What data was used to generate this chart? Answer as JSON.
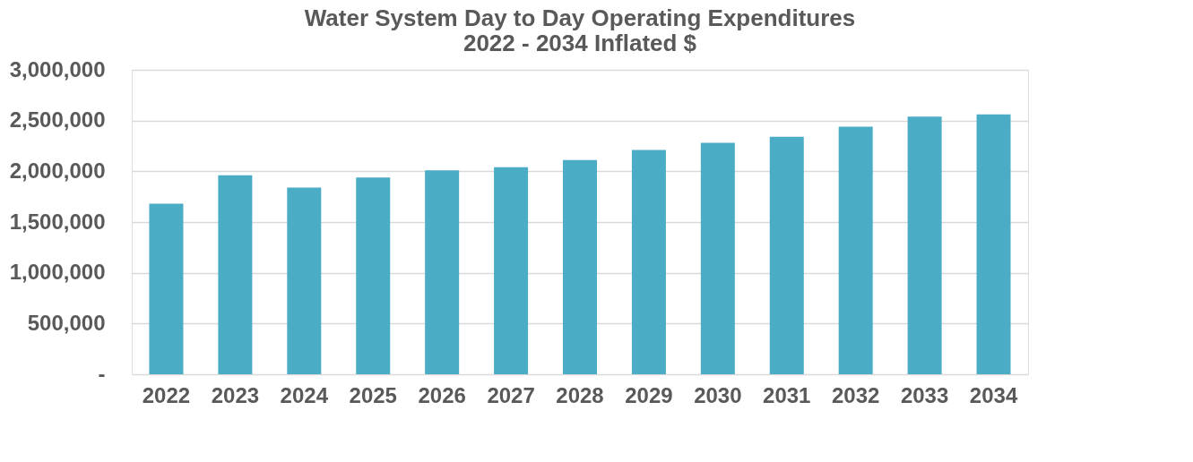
{
  "chart_data": {
    "type": "bar",
    "title": [
      "Water System Day to Day Operating Expenditures",
      "2022 - 2034 Inflated $"
    ],
    "categories": [
      "2022",
      "2023",
      "2024",
      "2025",
      "2026",
      "2027",
      "2028",
      "2029",
      "2030",
      "2031",
      "2032",
      "2033",
      "2034"
    ],
    "values": [
      1680000,
      1960000,
      1840000,
      1940000,
      2010000,
      2040000,
      2110000,
      2210000,
      2280000,
      2340000,
      2440000,
      2540000,
      2560000
    ],
    "color": "#4bacc6",
    "ylim": [
      0,
      3000000
    ],
    "yticks": [
      {
        "value": 0,
        "label": "-"
      },
      {
        "value": 500000,
        "label": "500,000"
      },
      {
        "value": 1000000,
        "label": "1,000,000"
      },
      {
        "value": 1500000,
        "label": "1,500,000"
      },
      {
        "value": 2000000,
        "label": "2,000,000"
      },
      {
        "value": 2500000,
        "label": "2,500,000"
      },
      {
        "value": 3000000,
        "label": "3,000,000"
      }
    ],
    "grid": "y"
  }
}
